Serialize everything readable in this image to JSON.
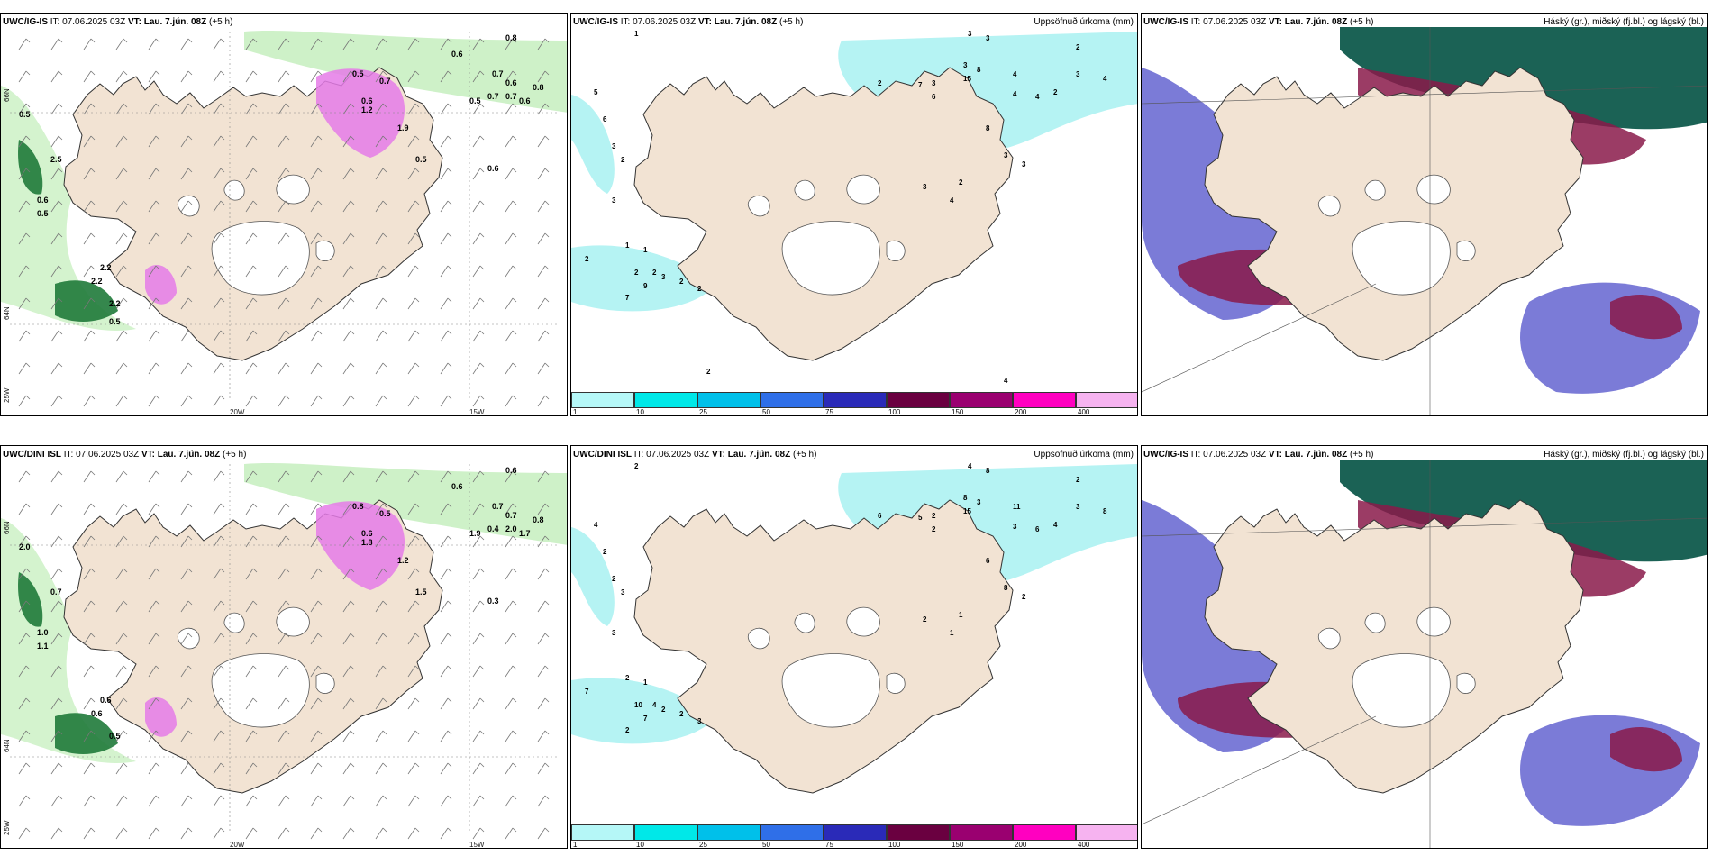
{
  "colors": {
    "land": "#f2e3d3",
    "glacier": "#ffffff",
    "precip_light": "#b5f3f3",
    "precip_green1": "#c9f0c2",
    "precip_green2": "#7fd38a",
    "precip_green3": "#1f7a3a",
    "precip_magenta": "#e57be8",
    "cloud_high": "#0f5a4c",
    "cloud_mid": "#8a1a4a",
    "cloud_low": "#5a5acd"
  },
  "panels": [
    {
      "id": "p1",
      "model": "UWC/IG-IS",
      "it_label": "IT:",
      "it_value": "07.06.2025 03Z",
      "vt_label": "VT:",
      "vt_value": "Lau. 7.jún. 08Z",
      "lead": "(+5 h)",
      "right_title": "",
      "axis_labels": {
        "lon1": "20W",
        "lon2": "15W",
        "lat1": "66N",
        "lat2": "64N",
        "lat3": "25W"
      },
      "values": [
        "0.8",
        "0.6",
        "0.7",
        "0.5",
        "0.7",
        "0.6",
        "0.8",
        "0.6",
        "0.5",
        "1.9",
        "0.5",
        "0.6",
        "1.2",
        "0.7",
        "0.7",
        "0.6",
        "0.5",
        "2.5",
        "0.6",
        "0.5",
        "2.2",
        "2.2",
        "2.2",
        "0.5"
      ]
    },
    {
      "id": "p2",
      "model": "UWC/IG-IS",
      "it_label": "IT:",
      "it_value": "07.06.2025 03Z",
      "vt_label": "VT:",
      "vt_value": "Lau. 7.jún. 08Z",
      "lead": "(+5 h)",
      "right_title": "Uppsöfnuð úrkoma (mm)",
      "values": [
        "1",
        "3",
        "3",
        "2",
        "4",
        "3",
        "2",
        "4",
        "4",
        "3",
        "7",
        "15",
        "3",
        "2",
        "8",
        "6",
        "4",
        "8",
        "3",
        "3",
        "2",
        "4",
        "3",
        "5",
        "6",
        "3",
        "2",
        "3",
        "1",
        "1",
        "2",
        "2",
        "3",
        "9",
        "7",
        "2",
        "2",
        "2",
        "2",
        "4"
      ]
    },
    {
      "id": "p3",
      "model": "UWC/IG-IS",
      "it_label": "IT:",
      "it_value": "07.06.2025 03Z",
      "vt_label": "VT:",
      "vt_value": "Lau. 7.jún. 08Z",
      "lead": "(+5 h)",
      "right_title": "Háský (gr.), miðský (fj.bl.) og lágský (bl.)",
      "values": []
    },
    {
      "id": "p4",
      "model": "UWC/DINI ISL",
      "it_label": "IT:",
      "it_value": "07.06.2025 03Z",
      "vt_label": "VT:",
      "vt_value": "Lau. 7.jún. 08Z",
      "lead": "(+5 h)",
      "right_title": "",
      "axis_labels": {
        "lon1": "20W",
        "lon2": "15W",
        "lat1": "66N",
        "lat2": "64N",
        "lat3": "25W"
      },
      "values": [
        "0.6",
        "0.6",
        "0.7",
        "0.8",
        "0.5",
        "0.7",
        "0.8",
        "0.6",
        "1.9",
        "1.2",
        "1.5",
        "0.3",
        "1.8",
        "0.4",
        "2.0",
        "1.7",
        "2.0",
        "0.7",
        "1.0",
        "1.1",
        "0.6",
        "0.6",
        "0.5"
      ]
    },
    {
      "id": "p5",
      "model": "UWC/DINI ISL",
      "it_label": "IT:",
      "it_value": "07.06.2025 03Z",
      "vt_label": "VT:",
      "vt_value": "Lau. 7.jún. 08Z",
      "lead": "(+5 h)",
      "right_title": "Uppsöfnuð úrkoma (mm)",
      "values": [
        "2",
        "4",
        "8",
        "2",
        "8",
        "3",
        "4",
        "6",
        "11",
        "8",
        "5",
        "15",
        "2",
        "6",
        "3",
        "2",
        "3",
        "6",
        "8",
        "2",
        "1",
        "1",
        "2",
        "4",
        "2",
        "2",
        "3",
        "3",
        "2",
        "1",
        "7",
        "10",
        "2",
        "7",
        "2",
        "4",
        "2",
        "3"
      ]
    },
    {
      "id": "p6",
      "model": "UWC/IG-IS",
      "it_label": "IT:",
      "it_value": "07.06.2025 03Z",
      "vt_label": "VT:",
      "vt_value": "Lau. 7.jún. 08Z",
      "lead": "(+5 h)",
      "right_title": "Háský (gr.), miðský (fj.bl.) og lágský (bl.)",
      "values": []
    }
  ],
  "legend": {
    "ticks": [
      "1",
      "10",
      "25",
      "50",
      "75",
      "100",
      "150",
      "200",
      "400"
    ],
    "colors": [
      "#b5f7f7",
      "#00e8e8",
      "#00c0ea",
      "#2f6fe8",
      "#2a2ab8",
      "#6a0040",
      "#9a0070",
      "#ff00c0",
      "#f6b3f0"
    ]
  }
}
